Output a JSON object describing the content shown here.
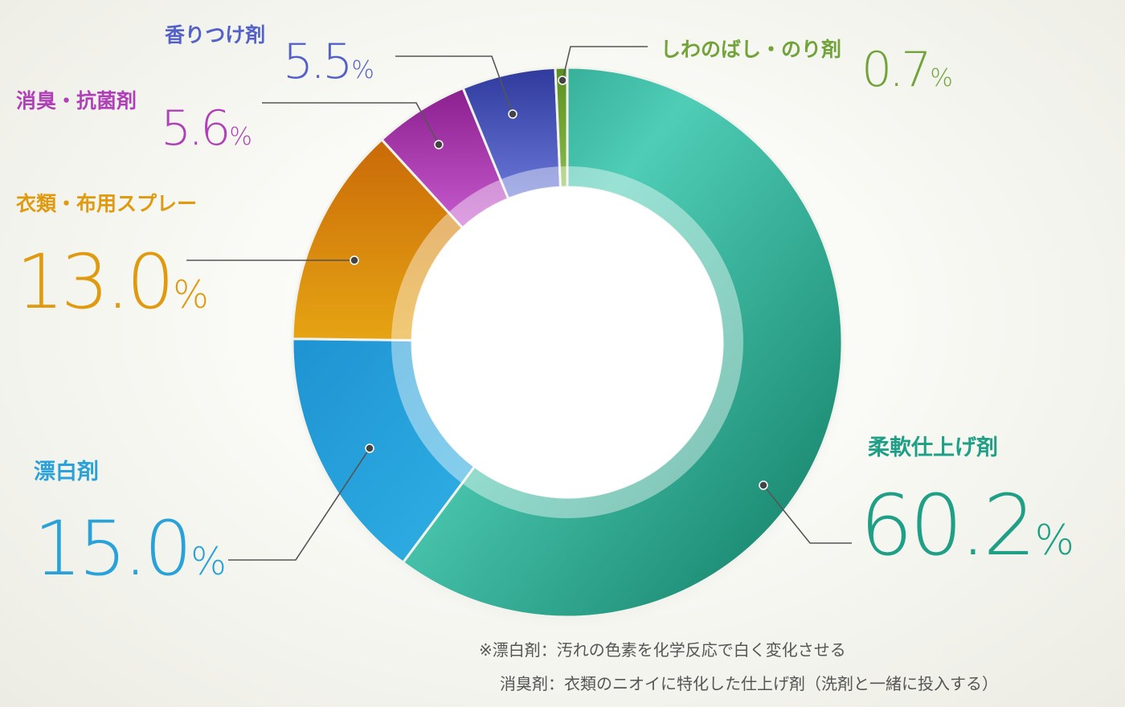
{
  "chart_data": {
    "type": "pie",
    "donut": true,
    "unit": "%",
    "slices": [
      {
        "label": "柔軟仕上げ剤",
        "value": 60.2,
        "color": "#1f9f86"
      },
      {
        "label": "漂白剤",
        "value": 15.0,
        "color": "#2aa2d8"
      },
      {
        "label": "衣類・布用スプレー",
        "value": 13.0,
        "color": "#e09a10"
      },
      {
        "label": "消臭・抗菌剤",
        "value": 5.6,
        "color": "#b040b8"
      },
      {
        "label": "香りつけ剤",
        "value": 5.5,
        "color": "#5462c8"
      },
      {
        "label": "しわのばし・のり剤",
        "value": 0.7,
        "color": "#72a33a"
      }
    ],
    "legend": "none"
  },
  "notes": [
    "※漂白剤：汚れの色素を化学反応で白く変化させる",
    "消臭剤：衣類のニオイに特化した仕上げ剤（洗剤と一緒に投入する）"
  ]
}
